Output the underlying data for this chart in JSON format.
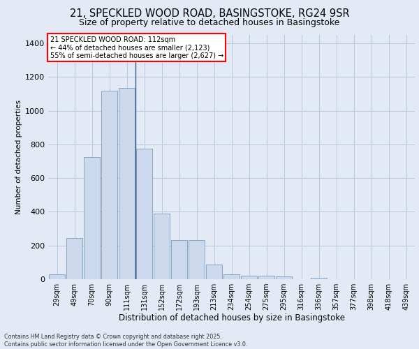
{
  "title1": "21, SPECKLED WOOD ROAD, BASINGSTOKE, RG24 9SR",
  "title2": "Size of property relative to detached houses in Basingstoke",
  "xlabel": "Distribution of detached houses by size in Basingstoke",
  "ylabel": "Number of detached properties",
  "categories": [
    "29sqm",
    "49sqm",
    "70sqm",
    "90sqm",
    "111sqm",
    "131sqm",
    "152sqm",
    "172sqm",
    "193sqm",
    "213sqm",
    "234sqm",
    "254sqm",
    "275sqm",
    "295sqm",
    "316sqm",
    "336sqm",
    "357sqm",
    "377sqm",
    "398sqm",
    "418sqm",
    "439sqm"
  ],
  "values": [
    30,
    245,
    725,
    1120,
    1135,
    775,
    390,
    230,
    230,
    85,
    30,
    20,
    20,
    15,
    0,
    10,
    0,
    0,
    0,
    0,
    0
  ],
  "bar_color": "#ccd9ed",
  "bar_edgecolor": "#7a9fc0",
  "vline_index": 4,
  "vline_color": "#3a5a8a",
  "annotation_text": "21 SPECKLED WOOD ROAD: 112sqm\n← 44% of detached houses are smaller (2,123)\n55% of semi-detached houses are larger (2,627) →",
  "ylim": [
    0,
    1450
  ],
  "yticks": [
    0,
    200,
    400,
    600,
    800,
    1000,
    1200,
    1400
  ],
  "background_color": "#e4eaf5",
  "grid_color": "#b8c8dc",
  "footer": "Contains HM Land Registry data © Crown copyright and database right 2025.\nContains public sector information licensed under the Open Government Licence v3.0."
}
